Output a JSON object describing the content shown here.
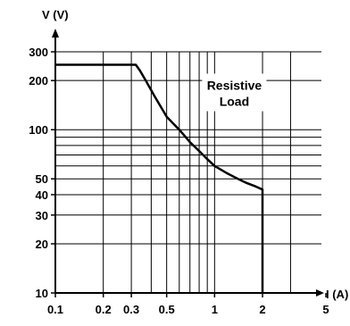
{
  "chart_data": {
    "type": "line",
    "xlabel": "I (A)",
    "ylabel": "V (V)",
    "x_scale": "log",
    "y_scale": "log",
    "xlim": [
      0.1,
      5
    ],
    "ylim": [
      10,
      300
    ],
    "grid": true,
    "x_gridlines": [
      0.1,
      0.2,
      0.3,
      0.4,
      0.5,
      0.6,
      0.7,
      0.8,
      0.9,
      1,
      2,
      3
    ],
    "y_gridlines": [
      10,
      20,
      30,
      40,
      50,
      60,
      70,
      80,
      90,
      100,
      200,
      300
    ],
    "x_ticks": [
      {
        "value": 0.1,
        "label": "0.1"
      },
      {
        "value": 0.2,
        "label": "0.2"
      },
      {
        "value": 0.3,
        "label": "0.3"
      },
      {
        "value": 0.5,
        "label": "0.5"
      },
      {
        "value": 1,
        "label": "1"
      },
      {
        "value": 2,
        "label": "2"
      },
      {
        "value": 5,
        "label": "5"
      }
    ],
    "y_ticks": [
      {
        "value": 10,
        "label": "10"
      },
      {
        "value": 20,
        "label": "20"
      },
      {
        "value": 30,
        "label": "30"
      },
      {
        "value": 40,
        "label": "40"
      },
      {
        "value": 50,
        "label": "50"
      },
      {
        "value": 100,
        "label": "100"
      },
      {
        "value": 200,
        "label": "200"
      },
      {
        "value": 300,
        "label": "300"
      }
    ],
    "series": [
      {
        "x": [
          0.1,
          0.32,
          0.34,
          0.37,
          0.42,
          0.5,
          0.6,
          0.7,
          0.8,
          0.9,
          1.0,
          1.2,
          1.4,
          1.6,
          1.8,
          2.0,
          2.0
        ],
        "y": [
          250,
          250,
          230,
          200,
          160,
          120,
          100,
          84,
          74,
          66,
          60,
          54,
          50,
          47,
          45,
          43,
          10
        ],
        "color": "#000000"
      }
    ],
    "annotation": {
      "line1": "Resistive",
      "line2": "Load",
      "x": 1.33,
      "y": 140
    }
  }
}
